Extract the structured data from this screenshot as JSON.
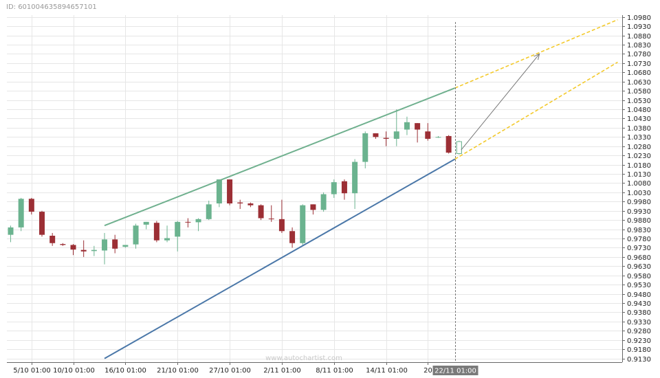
{
  "header": {
    "id_text": "ID: 601004635894657101"
  },
  "watermark": "www.autochartist.com",
  "chart_data": {
    "type": "candlestick",
    "ylim": [
      0.911,
      1.099
    ],
    "y_ticks": [
      1.098,
      1.093,
      1.088,
      1.083,
      1.078,
      1.073,
      1.068,
      1.063,
      1.058,
      1.053,
      1.048,
      1.043,
      1.038,
      1.033,
      1.028,
      1.023,
      1.018,
      1.013,
      1.008,
      1.003,
      0.998,
      0.993,
      0.988,
      0.983,
      0.978,
      0.973,
      0.968,
      0.963,
      0.958,
      0.953,
      0.948,
      0.943,
      0.938,
      0.933,
      0.928,
      0.923,
      0.918,
      0.913
    ],
    "x_tick_labels": [
      {
        "label": "5/10 01:00",
        "index": 2
      },
      {
        "label": "10/10 01:00",
        "index": 6
      },
      {
        "label": "16/10 01:00",
        "index": 11
      },
      {
        "label": "21/10 01:00",
        "index": 16
      },
      {
        "label": "27/10 01:00",
        "index": 21
      },
      {
        "label": "2/11 01:00",
        "index": 26
      },
      {
        "label": "8/11 01:00",
        "index": 31
      },
      {
        "label": "14/11 01:00",
        "index": 36
      },
      {
        "label": "20",
        "index": 40
      }
    ],
    "cursor_label": "22/11 01:00",
    "cursor_index": 42.6,
    "candles": [
      {
        "o": 0.98,
        "h": 0.985,
        "l": 0.976,
        "c": 0.984
      },
      {
        "o": 0.984,
        "h": 1.0,
        "l": 0.982,
        "c": 0.9995
      },
      {
        "o": 0.9995,
        "h": 1.0,
        "l": 0.991,
        "c": 0.9925
      },
      {
        "o": 0.9925,
        "h": 0.993,
        "l": 0.979,
        "c": 0.98
      },
      {
        "o": 0.9795,
        "h": 0.981,
        "l": 0.974,
        "c": 0.9755
      },
      {
        "o": 0.975,
        "h": 0.9755,
        "l": 0.974,
        "c": 0.9745
      },
      {
        "o": 0.9745,
        "h": 0.975,
        "l": 0.969,
        "c": 0.972
      },
      {
        "o": 0.9718,
        "h": 0.977,
        "l": 0.968,
        "c": 0.971
      },
      {
        "o": 0.9712,
        "h": 0.974,
        "l": 0.9685,
        "c": 0.9718
      },
      {
        "o": 0.9715,
        "h": 0.981,
        "l": 0.964,
        "c": 0.9775
      },
      {
        "o": 0.9775,
        "h": 0.98,
        "l": 0.97,
        "c": 0.9725
      },
      {
        "o": 0.9735,
        "h": 0.9745,
        "l": 0.973,
        "c": 0.9745
      },
      {
        "o": 0.9748,
        "h": 0.986,
        "l": 0.9725,
        "c": 0.985
      },
      {
        "o": 0.9855,
        "h": 0.987,
        "l": 0.983,
        "c": 0.987
      },
      {
        "o": 0.9865,
        "h": 0.9875,
        "l": 0.976,
        "c": 0.977
      },
      {
        "o": 0.977,
        "h": 0.985,
        "l": 0.976,
        "c": 0.9782
      },
      {
        "o": 0.979,
        "h": 0.9875,
        "l": 0.971,
        "c": 0.987
      },
      {
        "o": 0.987,
        "h": 0.989,
        "l": 0.984,
        "c": 0.9868
      },
      {
        "o": 0.9868,
        "h": 0.989,
        "l": 0.982,
        "c": 0.9885
      },
      {
        "o": 0.9885,
        "h": 0.9985,
        "l": 0.988,
        "c": 0.9965
      },
      {
        "o": 0.997,
        "h": 1.01,
        "l": 0.995,
        "c": 1.01
      },
      {
        "o": 1.01,
        "h": 1.01,
        "l": 0.996,
        "c": 0.997
      },
      {
        "o": 0.9975,
        "h": 0.999,
        "l": 0.994,
        "c": 0.997
      },
      {
        "o": 0.997,
        "h": 0.9975,
        "l": 0.995,
        "c": 0.996
      },
      {
        "o": 0.996,
        "h": 0.9965,
        "l": 0.988,
        "c": 0.989
      },
      {
        "o": 0.9888,
        "h": 0.996,
        "l": 0.987,
        "c": 0.9885
      },
      {
        "o": 0.9885,
        "h": 0.999,
        "l": 0.981,
        "c": 0.982
      },
      {
        "o": 0.982,
        "h": 0.984,
        "l": 0.973,
        "c": 0.9755
      },
      {
        "o": 0.9755,
        "h": 0.9965,
        "l": 0.9745,
        "c": 0.996
      },
      {
        "o": 0.9965,
        "h": 0.9965,
        "l": 0.991,
        "c": 0.9935
      },
      {
        "o": 0.9935,
        "h": 1.003,
        "l": 0.9925,
        "c": 1.002
      },
      {
        "o": 1.002,
        "h": 1.01,
        "l": 1.0,
        "c": 1.0085
      },
      {
        "o": 1.009,
        "h": 1.01,
        "l": 0.999,
        "c": 1.0025
      },
      {
        "o": 1.0025,
        "h": 1.021,
        "l": 0.994,
        "c": 1.0195
      },
      {
        "o": 1.0195,
        "h": 1.036,
        "l": 1.016,
        "c": 1.035
      },
      {
        "o": 1.035,
        "h": 1.035,
        "l": 1.032,
        "c": 1.033
      },
      {
        "o": 1.0325,
        "h": 1.036,
        "l": 1.028,
        "c": 1.032
      },
      {
        "o": 1.032,
        "h": 1.048,
        "l": 1.028,
        "c": 1.036
      },
      {
        "o": 1.037,
        "h": 1.044,
        "l": 1.034,
        "c": 1.041
      },
      {
        "o": 1.0405,
        "h": 1.0405,
        "l": 1.03,
        "c": 1.037
      },
      {
        "o": 1.036,
        "h": 1.0405,
        "l": 1.031,
        "c": 1.032
      },
      {
        "o": 1.033,
        "h": 1.0335,
        "l": 1.0325,
        "c": 1.033
      },
      {
        "o": 1.0335,
        "h": 1.034,
        "l": 1.024,
        "c": 1.0245
      },
      {
        "o": 1.024,
        "h": 1.031,
        "l": 1.0235,
        "c": 1.0305
      }
    ],
    "projected_index": 43,
    "lines": {
      "resistance": {
        "from": {
          "index": 9,
          "y": 0.985
        },
        "to": {
          "index": 42.6,
          "y": 1.0595
        },
        "color": "#6fb08e"
      },
      "support": {
        "from": {
          "index": 9,
          "y": 0.913
        },
        "to": {
          "index": 42.6,
          "y": 1.021
        },
        "color": "#4a77a8"
      },
      "projection_upper": {
        "from": {
          "index": 42.6,
          "y": 1.0595
        },
        "to": {
          "index": 58.2,
          "y": 1.0965
        },
        "color": "#f3c92a"
      },
      "projection_lower": {
        "from": {
          "index": 42.6,
          "y": 1.021
        },
        "to": {
          "index": 58.2,
          "y": 1.0735
        },
        "color": "#f3c92a"
      },
      "forecast_arrow": {
        "from": {
          "index": 43.2,
          "y": 1.026
        },
        "to": {
          "index": 50.7,
          "y": 1.078
        },
        "color": "#777777"
      }
    },
    "colors": {
      "bull": "#6bb38f",
      "bear": "#9c2f35",
      "grid": "#e6e6e6",
      "axis": "#666666",
      "cursor": "#777777",
      "cursor_tag_bg": "#7a7a7a"
    }
  }
}
